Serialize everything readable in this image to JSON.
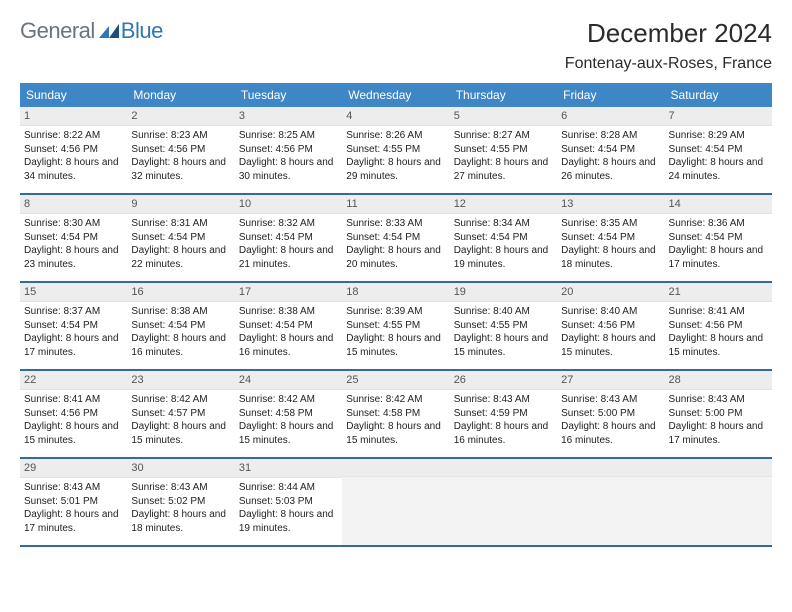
{
  "brand": {
    "text1": "General",
    "text2": "Blue"
  },
  "title": "December 2024",
  "location": "Fontenay-aux-Roses, France",
  "colors": {
    "header_bg": "#3f86c6",
    "header_text": "#ffffff",
    "week_divider": "#356a9c",
    "numbar_bg": "#ededed",
    "logo_gray": "#6b7280",
    "logo_blue": "#2f77b7"
  },
  "dows": [
    "Sunday",
    "Monday",
    "Tuesday",
    "Wednesday",
    "Thursday",
    "Friday",
    "Saturday"
  ],
  "days": [
    {
      "n": 1,
      "sr": "8:22 AM",
      "ss": "4:56 PM",
      "dl": "8 hours and 34 minutes."
    },
    {
      "n": 2,
      "sr": "8:23 AM",
      "ss": "4:56 PM",
      "dl": "8 hours and 32 minutes."
    },
    {
      "n": 3,
      "sr": "8:25 AM",
      "ss": "4:56 PM",
      "dl": "8 hours and 30 minutes."
    },
    {
      "n": 4,
      "sr": "8:26 AM",
      "ss": "4:55 PM",
      "dl": "8 hours and 29 minutes."
    },
    {
      "n": 5,
      "sr": "8:27 AM",
      "ss": "4:55 PM",
      "dl": "8 hours and 27 minutes."
    },
    {
      "n": 6,
      "sr": "8:28 AM",
      "ss": "4:54 PM",
      "dl": "8 hours and 26 minutes."
    },
    {
      "n": 7,
      "sr": "8:29 AM",
      "ss": "4:54 PM",
      "dl": "8 hours and 24 minutes."
    },
    {
      "n": 8,
      "sr": "8:30 AM",
      "ss": "4:54 PM",
      "dl": "8 hours and 23 minutes."
    },
    {
      "n": 9,
      "sr": "8:31 AM",
      "ss": "4:54 PM",
      "dl": "8 hours and 22 minutes."
    },
    {
      "n": 10,
      "sr": "8:32 AM",
      "ss": "4:54 PM",
      "dl": "8 hours and 21 minutes."
    },
    {
      "n": 11,
      "sr": "8:33 AM",
      "ss": "4:54 PM",
      "dl": "8 hours and 20 minutes."
    },
    {
      "n": 12,
      "sr": "8:34 AM",
      "ss": "4:54 PM",
      "dl": "8 hours and 19 minutes."
    },
    {
      "n": 13,
      "sr": "8:35 AM",
      "ss": "4:54 PM",
      "dl": "8 hours and 18 minutes."
    },
    {
      "n": 14,
      "sr": "8:36 AM",
      "ss": "4:54 PM",
      "dl": "8 hours and 17 minutes."
    },
    {
      "n": 15,
      "sr": "8:37 AM",
      "ss": "4:54 PM",
      "dl": "8 hours and 17 minutes."
    },
    {
      "n": 16,
      "sr": "8:38 AM",
      "ss": "4:54 PM",
      "dl": "8 hours and 16 minutes."
    },
    {
      "n": 17,
      "sr": "8:38 AM",
      "ss": "4:54 PM",
      "dl": "8 hours and 16 minutes."
    },
    {
      "n": 18,
      "sr": "8:39 AM",
      "ss": "4:55 PM",
      "dl": "8 hours and 15 minutes."
    },
    {
      "n": 19,
      "sr": "8:40 AM",
      "ss": "4:55 PM",
      "dl": "8 hours and 15 minutes."
    },
    {
      "n": 20,
      "sr": "8:40 AM",
      "ss": "4:56 PM",
      "dl": "8 hours and 15 minutes."
    },
    {
      "n": 21,
      "sr": "8:41 AM",
      "ss": "4:56 PM",
      "dl": "8 hours and 15 minutes."
    },
    {
      "n": 22,
      "sr": "8:41 AM",
      "ss": "4:56 PM",
      "dl": "8 hours and 15 minutes."
    },
    {
      "n": 23,
      "sr": "8:42 AM",
      "ss": "4:57 PM",
      "dl": "8 hours and 15 minutes."
    },
    {
      "n": 24,
      "sr": "8:42 AM",
      "ss": "4:58 PM",
      "dl": "8 hours and 15 minutes."
    },
    {
      "n": 25,
      "sr": "8:42 AM",
      "ss": "4:58 PM",
      "dl": "8 hours and 15 minutes."
    },
    {
      "n": 26,
      "sr": "8:43 AM",
      "ss": "4:59 PM",
      "dl": "8 hours and 16 minutes."
    },
    {
      "n": 27,
      "sr": "8:43 AM",
      "ss": "5:00 PM",
      "dl": "8 hours and 16 minutes."
    },
    {
      "n": 28,
      "sr": "8:43 AM",
      "ss": "5:00 PM",
      "dl": "8 hours and 17 minutes."
    },
    {
      "n": 29,
      "sr": "8:43 AM",
      "ss": "5:01 PM",
      "dl": "8 hours and 17 minutes."
    },
    {
      "n": 30,
      "sr": "8:43 AM",
      "ss": "5:02 PM",
      "dl": "8 hours and 18 minutes."
    },
    {
      "n": 31,
      "sr": "8:44 AM",
      "ss": "5:03 PM",
      "dl": "8 hours and 19 minutes."
    }
  ],
  "labels": {
    "sunrise": "Sunrise:",
    "sunset": "Sunset:",
    "daylight": "Daylight:"
  },
  "layout": {
    "start_dow": 0,
    "weeks": 5,
    "trailing_empty": 4
  }
}
